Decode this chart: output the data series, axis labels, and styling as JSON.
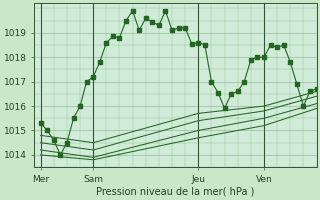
{
  "background_color": "#c8e8c8",
  "plot_bg_color": "#d0ecd8",
  "grid_color": "#99bb99",
  "line_color": "#226622",
  "title": "Pression niveau de la mer( hPa )",
  "ylim": [
    1013.5,
    1020.2
  ],
  "yticks": [
    1014,
    1015,
    1016,
    1017,
    1018,
    1019
  ],
  "day_labels": [
    "Mer",
    "Sam",
    "Jeu",
    "Ven"
  ],
  "day_positions": [
    0,
    16,
    48,
    68
  ],
  "xlim": [
    -2,
    84
  ],
  "vline_positions": [
    0,
    16,
    48,
    68
  ],
  "main_x": [
    0,
    2,
    4,
    6,
    8,
    10,
    12,
    14,
    16,
    18,
    20,
    22,
    24,
    26,
    28,
    30,
    32,
    34,
    36,
    38,
    40,
    42,
    44,
    46,
    48,
    50,
    52,
    54,
    56,
    58,
    60,
    62,
    64,
    66,
    68,
    70,
    72,
    74,
    76,
    78,
    80,
    82,
    84
  ],
  "main_y": [
    1015.3,
    1015.0,
    1014.6,
    1014.0,
    1014.5,
    1015.5,
    1016.0,
    1017.0,
    1017.2,
    1017.8,
    1018.6,
    1018.85,
    1018.8,
    1019.5,
    1019.9,
    1019.1,
    1019.6,
    1019.45,
    1019.3,
    1019.9,
    1019.1,
    1019.2,
    1019.2,
    1018.55,
    1018.6,
    1018.5,
    1017.0,
    1016.55,
    1015.9,
    1016.5,
    1016.6,
    1017.0,
    1017.9,
    1018.0,
    1018.0,
    1018.5,
    1018.4,
    1018.5,
    1017.8,
    1016.9,
    1016.0,
    1016.6,
    1016.7
  ],
  "line2_x": [
    0,
    16,
    48,
    68,
    84
  ],
  "line2_y": [
    1014.8,
    1014.5,
    1015.7,
    1016.0,
    1016.6
  ],
  "line3_x": [
    0,
    16,
    48,
    68,
    84
  ],
  "line3_y": [
    1014.5,
    1014.2,
    1015.4,
    1015.8,
    1016.4
  ],
  "line4_x": [
    0,
    16,
    48,
    68,
    84
  ],
  "line4_y": [
    1014.2,
    1013.9,
    1015.0,
    1015.5,
    1016.1
  ],
  "line5_x": [
    0,
    16,
    48,
    68,
    84
  ],
  "line5_y": [
    1014.0,
    1013.8,
    1014.7,
    1015.2,
    1015.9
  ]
}
